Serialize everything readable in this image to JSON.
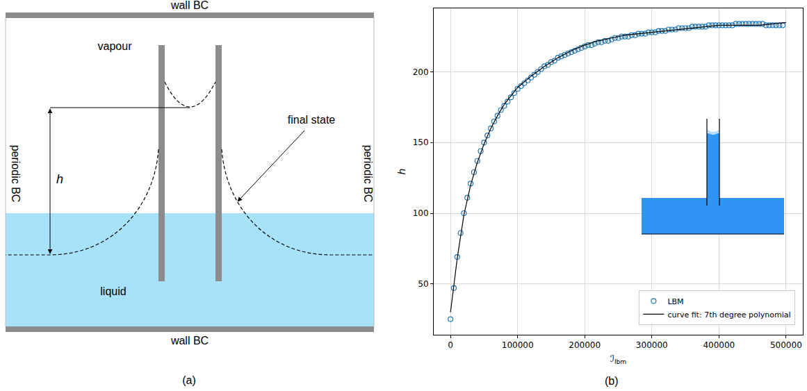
{
  "diagram": {
    "label": "(a)",
    "top_wall": "wall BC",
    "bottom_wall": "wall BC",
    "left_boundary": "periodic BC",
    "right_boundary": "periodic BC",
    "upper_phase": "vapour",
    "lower_phase": "liquid",
    "height_label": "h",
    "curve_label": "final state"
  },
  "chart_data": {
    "type": "scatter",
    "panel_label": "(b)",
    "x_label": "ℐ",
    "x_label_subscript": "lbm",
    "y_label": "h",
    "xlim": [
      -25000,
      525000
    ],
    "xticks": [
      0,
      100000,
      200000,
      300000,
      400000,
      500000
    ],
    "ylim": [
      14,
      245
    ],
    "yticks": [
      50,
      100,
      150,
      200
    ],
    "grid": true,
    "legend": "lower right",
    "series": [
      {
        "name": "LBM",
        "type": "scatter",
        "marker": "open circle",
        "color": "#1f77b4",
        "x": [
          0,
          5000,
          10000,
          15000,
          20000,
          25000,
          30000,
          35000,
          40000,
          45000,
          50000,
          55000,
          60000,
          65000,
          70000,
          75000,
          80000,
          85000,
          90000,
          95000,
          100000,
          105000,
          110000,
          115000,
          120000,
          125000,
          130000,
          135000,
          140000,
          145000,
          150000,
          155000,
          160000,
          165000,
          170000,
          175000,
          180000,
          185000,
          190000,
          195000,
          200000,
          205000,
          210000,
          215000,
          220000,
          225000,
          230000,
          235000,
          240000,
          245000,
          250000,
          255000,
          260000,
          265000,
          270000,
          275000,
          280000,
          285000,
          290000,
          295000,
          300000,
          305000,
          310000,
          315000,
          320000,
          325000,
          330000,
          335000,
          340000,
          345000,
          350000,
          355000,
          360000,
          365000,
          370000,
          375000,
          380000,
          385000,
          390000,
          395000,
          400000,
          405000,
          410000,
          415000,
          420000,
          425000,
          430000,
          435000,
          440000,
          445000,
          450000,
          455000,
          460000,
          465000,
          470000,
          475000,
          480000,
          485000,
          490000,
          495000
        ],
        "values": [
          25,
          47,
          69,
          86,
          100,
          111,
          121,
          129,
          137,
          144,
          150,
          155,
          160,
          165,
          169,
          173,
          176,
          179,
          182,
          185,
          188,
          190,
          192,
          194,
          196,
          198,
          200,
          202,
          204,
          205,
          207,
          208,
          210,
          211,
          212,
          213,
          214,
          215,
          216,
          217,
          218,
          219,
          219,
          220,
          221,
          221,
          222,
          222,
          223,
          224,
          224,
          225,
          225,
          225,
          226,
          226,
          227,
          227,
          227,
          228,
          228,
          228,
          229,
          229,
          229,
          230,
          230,
          230,
          231,
          231,
          231,
          231,
          232,
          232,
          232,
          232,
          232,
          233,
          233,
          233,
          233,
          233,
          233,
          233,
          233,
          234,
          234,
          234,
          234,
          234,
          234,
          234,
          234,
          234,
          233,
          233,
          233,
          233,
          233,
          233
        ]
      },
      {
        "name": "curve fit: 7th degree polynomial",
        "type": "line",
        "line_style": "solid",
        "color": "#000000",
        "x": [
          0,
          10000,
          20000,
          30000,
          40000,
          50000,
          60000,
          70000,
          80000,
          90000,
          100000,
          120000,
          140000,
          160000,
          180000,
          200000,
          220000,
          240000,
          260000,
          280000,
          300000,
          320000,
          340000,
          360000,
          380000,
          400000,
          420000,
          440000,
          460000,
          480000,
          500000
        ],
        "values": [
          30,
          68,
          99,
          120,
          136,
          149,
          160,
          169,
          177,
          183,
          189,
          197,
          204,
          210,
          215,
          219,
          222,
          224,
          226,
          227,
          228,
          229,
          230,
          231,
          232,
          233,
          233,
          233,
          233,
          234,
          235
        ]
      }
    ]
  }
}
